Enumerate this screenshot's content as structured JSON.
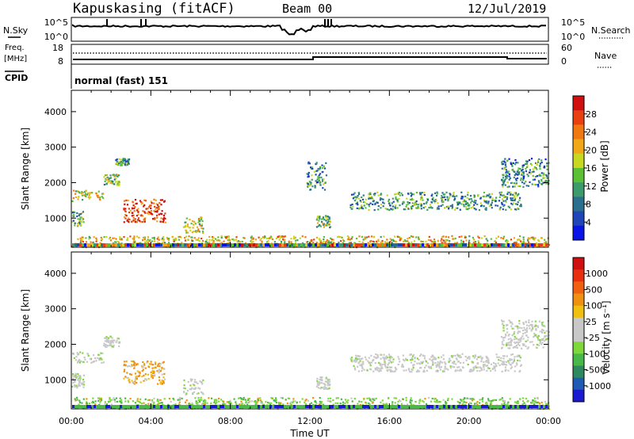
{
  "header": {
    "title": "Kapuskasing (fitACF)",
    "beam": "Beam 00",
    "date": "12/Jul/2019"
  },
  "top_panels": {
    "nsky_label": "N.Sky",
    "nsky_ticks": [
      "10^5",
      "10^0"
    ],
    "nsearch_label": "N.Search",
    "nsearch_ticks": [
      "10^5",
      "10^0"
    ],
    "freq_label_1": "Freq.",
    "freq_label_2": "[MHz]",
    "freq_ticks": [
      "18",
      "8"
    ],
    "nave_label": "Nave",
    "nave_ticks": [
      "60",
      "0"
    ],
    "cpid_label": "CPID",
    "cpid_text": "normal (fast) 151"
  },
  "chart_data": [
    {
      "type": "heatmap",
      "name": "power-panel",
      "xlabel": "",
      "ylabel": "Slant Range [km]",
      "y_ticks": [
        "1000",
        "2000",
        "3000",
        "4000"
      ],
      "ylim": [
        180,
        4600
      ],
      "xlim": [
        0,
        24
      ],
      "colorbar_label": "Power [dB]",
      "colorbar_ticks": [
        "4",
        "8",
        "12",
        "16",
        "20",
        "24",
        "28"
      ],
      "colorbar_colors": [
        "#0a14e8",
        "#1f46b8",
        "#2a6f8e",
        "#3d9a6a",
        "#5cc035",
        "#c8d820",
        "#f0a818",
        "#f07810",
        "#e84010",
        "#d01010"
      ],
      "echo_regions": [
        {
          "t0": 0.0,
          "t1": 0.6,
          "r0": 800,
          "r1": 1200,
          "level": 0.4
        },
        {
          "t0": 0.0,
          "t1": 1.6,
          "r0": 1500,
          "r1": 1800,
          "level": 0.55
        },
        {
          "t0": 1.6,
          "t1": 2.4,
          "r0": 1950,
          "r1": 2250,
          "level": 0.45
        },
        {
          "t0": 2.2,
          "t1": 2.9,
          "r0": 2500,
          "r1": 2700,
          "level": 0.35
        },
        {
          "t0": 2.6,
          "t1": 4.7,
          "r0": 900,
          "r1": 1550,
          "level": 0.85
        },
        {
          "t0": 5.6,
          "t1": 6.6,
          "r0": 600,
          "r1": 1050,
          "level": 0.5
        },
        {
          "t0": 12.3,
          "t1": 13.0,
          "r0": 750,
          "r1": 1100,
          "level": 0.45
        },
        {
          "t0": 11.8,
          "t1": 12.8,
          "r0": 1800,
          "r1": 2600,
          "level": 0.3
        },
        {
          "t0": 14.0,
          "t1": 22.6,
          "r0": 1250,
          "r1": 1750,
          "level": 0.35
        },
        {
          "t0": 21.6,
          "t1": 24.0,
          "r0": 1900,
          "r1": 2700,
          "level": 0.3
        },
        {
          "t0": 0.0,
          "t1": 24.0,
          "r0": 200,
          "r1": 520,
          "level": 0.6
        }
      ]
    },
    {
      "type": "heatmap",
      "name": "velocity-panel",
      "xlabel": "Time UT",
      "ylabel": "Slant Range [km]",
      "x_ticks": [
        "00:00",
        "04:00",
        "08:00",
        "12:00",
        "16:00",
        "20:00",
        "00:00"
      ],
      "y_ticks": [
        "1000",
        "2000",
        "3000",
        "4000"
      ],
      "ylim": [
        180,
        4600
      ],
      "xlim": [
        0,
        24
      ],
      "colorbar_label": "Velocity [m s⁻¹]",
      "colorbar_ticks": [
        "1000",
        "500",
        "100",
        "25",
        "-25",
        "-100",
        "-500",
        "-1000"
      ],
      "colorbar_colors": [
        "#1a1ad0",
        "#1f5ab4",
        "#2e8a5e",
        "#48b848",
        "#7ed83a",
        "#c8c8c8",
        "#c8c8c8",
        "#f0c010",
        "#f09010",
        "#f06010",
        "#e83010",
        "#d01010"
      ],
      "echo_regions": [
        {
          "t0": 0.0,
          "t1": 0.6,
          "r0": 800,
          "r1": 1200,
          "level": 0.5
        },
        {
          "t0": 0.0,
          "t1": 1.6,
          "r0": 1500,
          "r1": 1800,
          "level": 0.5
        },
        {
          "t0": 1.6,
          "t1": 2.4,
          "r0": 1950,
          "r1": 2250,
          "level": 0.5
        },
        {
          "t0": 2.6,
          "t1": 4.7,
          "r0": 900,
          "r1": 1550,
          "level": 0.85
        },
        {
          "t0": 5.6,
          "t1": 6.6,
          "r0": 600,
          "r1": 1050,
          "level": 0.5
        },
        {
          "t0": 12.3,
          "t1": 13.0,
          "r0": 750,
          "r1": 1100,
          "level": 0.5
        },
        {
          "t0": 14.0,
          "t1": 22.6,
          "r0": 1250,
          "r1": 1750,
          "level": 0.5
        },
        {
          "t0": 21.6,
          "t1": 24.0,
          "r0": 1900,
          "r1": 2700,
          "level": 0.5
        },
        {
          "t0": 0.0,
          "t1": 24.0,
          "r0": 200,
          "r1": 520,
          "level": 0.25
        }
      ]
    }
  ]
}
